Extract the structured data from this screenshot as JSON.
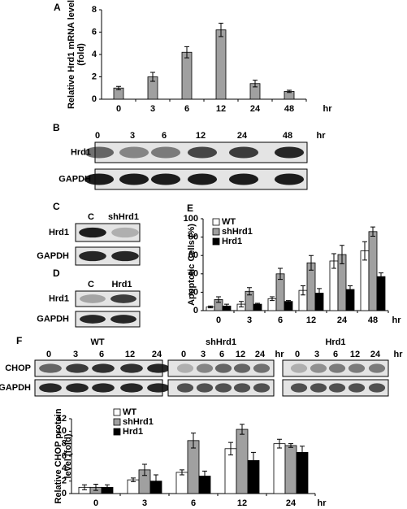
{
  "chart_data": [
    {
      "type": "bar",
      "panel": "A",
      "ylabel": [
        "Relative Hrd1 mRNA level",
        "(fold)"
      ],
      "xunit": "hr",
      "categories": [
        "0",
        "3",
        "6",
        "12",
        "24",
        "48"
      ],
      "values": [
        1.0,
        2.0,
        4.2,
        6.2,
        1.4,
        0.7
      ],
      "errors": [
        0.15,
        0.4,
        0.5,
        0.6,
        0.3,
        0.1
      ],
      "color": "#a0a0a0",
      "ylim": [
        0,
        8
      ],
      "yticks": [
        0,
        2,
        4,
        6,
        8
      ]
    },
    {
      "type": "bar",
      "panel": "E",
      "ylabel": [
        "Apoptotic Cells (%)"
      ],
      "xunit": "hr",
      "categories": [
        "0",
        "3",
        "6",
        "12",
        "24",
        "48"
      ],
      "series": [
        {
          "name": "WT",
          "color": "#ffffff",
          "values": [
            4,
            7,
            13,
            22,
            54,
            65
          ],
          "errors": [
            1,
            3,
            2,
            5,
            8,
            10
          ]
        },
        {
          "name": "shHrd1",
          "color": "#a0a0a0",
          "values": [
            12,
            21,
            40,
            52,
            61,
            86
          ],
          "errors": [
            3,
            4,
            6,
            8,
            10,
            5
          ]
        },
        {
          "name": "Hrd1",
          "color": "#000000",
          "values": [
            5,
            7,
            10,
            19,
            23,
            37
          ],
          "errors": [
            2,
            1,
            1,
            5,
            4,
            4
          ]
        }
      ],
      "ylim": [
        0,
        100
      ],
      "yticks": [
        0,
        20,
        40,
        60,
        80,
        100
      ],
      "legend": "top-left"
    },
    {
      "type": "bar",
      "ylabel": [
        "Relative CHOP protein",
        "level (fold)"
      ],
      "xunit": "hr",
      "categories": [
        "0",
        "3",
        "6",
        "12",
        "24"
      ],
      "series": [
        {
          "name": "WT",
          "color": "#ffffff",
          "values": [
            1.0,
            2.2,
            3.4,
            7.2,
            8.0
          ],
          "errors": [
            0.4,
            0.3,
            0.4,
            1.0,
            0.7
          ]
        },
        {
          "name": "shHrd1",
          "color": "#a0a0a0",
          "values": [
            1.0,
            3.8,
            8.5,
            10.3,
            7.7
          ],
          "errors": [
            0.5,
            0.9,
            1.2,
            0.8,
            0.3
          ]
        },
        {
          "name": "Hrd1",
          "color": "#000000",
          "values": [
            1.0,
            2.0,
            2.8,
            5.3,
            6.6
          ],
          "errors": [
            0.4,
            1.0,
            0.8,
            1.3,
            1.0
          ]
        }
      ],
      "ylim": [
        0,
        12
      ],
      "yticks": [
        0,
        2,
        4,
        6,
        8,
        10,
        12
      ],
      "legend": "top-left"
    }
  ],
  "blots": [
    {
      "panel": "B",
      "lanes": [
        "0",
        "3",
        "6",
        "12",
        "24",
        "48"
      ],
      "unit": "hr",
      "rows": [
        "Hrd1",
        "GAPDH"
      ]
    },
    {
      "panel": "C",
      "lanes": [
        "C",
        "shHrd1"
      ],
      "rows": [
        "Hrd1",
        "GAPDH"
      ]
    },
    {
      "panel": "D",
      "lanes": [
        "C",
        "Hrd1"
      ],
      "rows": [
        "Hrd1",
        "GAPDH"
      ]
    },
    {
      "panel": "F",
      "title": "WT",
      "lanes": [
        "0",
        "3",
        "6",
        "12",
        "24"
      ],
      "rows": [
        "CHOP",
        "GAPDH"
      ]
    },
    {
      "title": "shHrd1",
      "lanes": [
        "0",
        "3",
        "6",
        "12",
        "24"
      ],
      "unit": "hr"
    },
    {
      "title": "Hrd1",
      "lanes": [
        "0",
        "3",
        "6",
        "12",
        "24"
      ],
      "unit": "hr"
    }
  ]
}
